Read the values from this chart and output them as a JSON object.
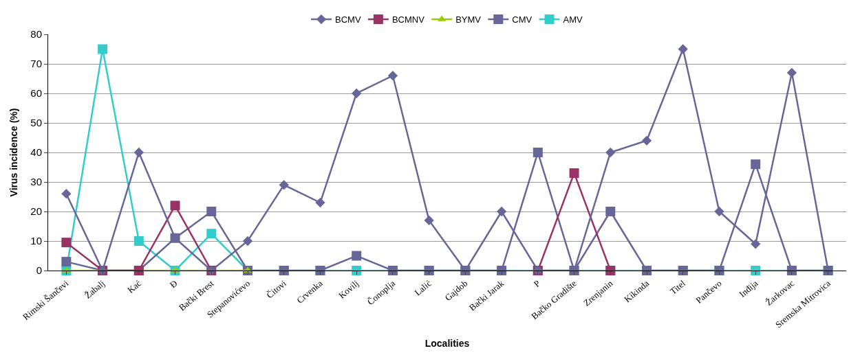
{
  "chart_data": {
    "type": "line",
    "xlabel": "Localities",
    "ylabel": "Virus incidence (%)",
    "categories": [
      "Rimski Šančevi",
      "Žabalj",
      "Kać",
      "Đ",
      "Bački Brest",
      "Stepanovićevo",
      "Čitovi",
      "Crvenka",
      "Kovilj",
      "Čonoplja",
      "Lalić",
      "Gajdob",
      "Bački Jarak",
      "P",
      "Bačko Gradište",
      "Zrenjanin",
      "Kikinda",
      "Titel",
      "Pančevo",
      "Inđija",
      "Žarkovac",
      "Sremska Mitrovica"
    ],
    "series": [
      {
        "name": "BCMV",
        "color": "#666699",
        "marker": "diamond",
        "values": [
          26,
          0,
          40,
          11,
          0,
          10,
          29,
          23,
          60,
          66,
          17,
          0,
          20,
          0,
          0,
          40,
          44,
          75,
          20,
          9,
          67,
          0
        ]
      },
      {
        "name": "BCMNV",
        "color": "#993366",
        "marker": "square",
        "values": [
          9.5,
          0,
          0,
          22,
          0,
          null,
          null,
          null,
          null,
          null,
          null,
          null,
          null,
          0,
          33,
          0,
          null,
          null,
          null,
          null,
          null,
          null
        ]
      },
      {
        "name": "BYMV",
        "color": "#99cc00",
        "marker": "triangle",
        "values": [
          0,
          0,
          0,
          0,
          0,
          0,
          null,
          null,
          null,
          null,
          null,
          null,
          null,
          null,
          null,
          null,
          null,
          null,
          null,
          null,
          null,
          null
        ]
      },
      {
        "name": "CMV",
        "color": "#666699",
        "marker": "square",
        "values": [
          3,
          0,
          0,
          11,
          20,
          0,
          0,
          0,
          5,
          0,
          0,
          0,
          0,
          40,
          0,
          20,
          0,
          0,
          0,
          36,
          0,
          0
        ]
      },
      {
        "name": "AMV",
        "color": "#33cccc",
        "marker": "square",
        "values": [
          0,
          75,
          10,
          0,
          12.5,
          0,
          0,
          0,
          0,
          0,
          0,
          0,
          0,
          0,
          0,
          0,
          0,
          0,
          0,
          0,
          0,
          0
        ]
      }
    ],
    "ylim": [
      0,
      80
    ],
    "yticks": [
      0,
      10,
      20,
      30,
      40,
      50,
      60,
      70,
      80
    ],
    "grid": "y",
    "legend": "top",
    "line_style": "solid"
  }
}
